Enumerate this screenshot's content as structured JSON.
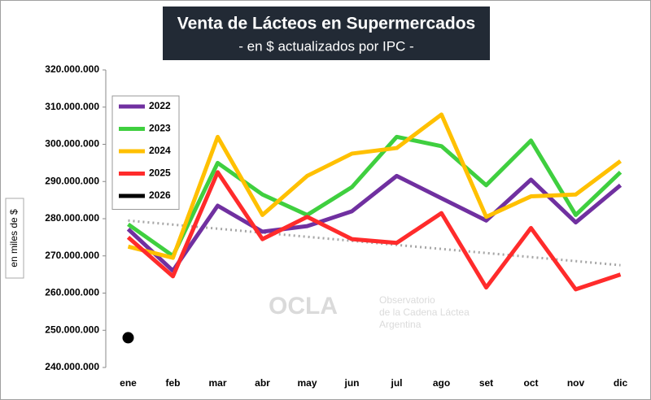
{
  "chart_data": {
    "type": "line",
    "title": "Venta de Lácteos en Supermercados",
    "subtitle": "- en $ actualizados por IPC -",
    "y_label": "en miles de $",
    "watermark": {
      "logo": "OCLA",
      "line1": "Observatorio",
      "line2": "de la Cadena Láctea",
      "line3": "Argentina"
    },
    "categories": [
      "ene",
      "feb",
      "mar",
      "abr",
      "may",
      "jun",
      "jul",
      "ago",
      "set",
      "oct",
      "nov",
      "dic"
    ],
    "series": [
      {
        "name": "2022",
        "color": "#7030a0",
        "values": [
          277200000,
          266000000,
          283500000,
          276500000,
          278000000,
          282000000,
          291500000,
          285500000,
          279500000,
          290500000,
          279000000,
          289000000
        ]
      },
      {
        "name": "2023",
        "color": "#3fcf3f",
        "values": [
          278500000,
          270000000,
          295000000,
          286500000,
          281000000,
          288500000,
          302000000,
          299500000,
          289000000,
          301000000,
          281000000,
          292500000
        ]
      },
      {
        "name": "2024",
        "color": "#ffc000",
        "values": [
          272500000,
          269500000,
          302000000,
          281000000,
          291500000,
          297500000,
          299000000,
          308000000,
          280500000,
          286000000,
          286500000,
          295500000
        ]
      },
      {
        "name": "2025",
        "color": "#ff2b2b",
        "values": [
          275000000,
          264500000,
          292500000,
          274500000,
          280500000,
          274500000,
          273500000,
          281500000,
          261500000,
          277500000,
          261000000,
          265000000
        ]
      },
      {
        "name": "2026",
        "color": "#000000",
        "values": [
          248000000,
          null,
          null,
          null,
          null,
          null,
          null,
          null,
          null,
          null,
          null,
          null
        ]
      }
    ],
    "trend": {
      "color": "#a6a6a6",
      "values": [
        279500000,
        267500000
      ]
    },
    "ylim": [
      240000000,
      320000000
    ],
    "yticks": [
      {
        "value": 240000000,
        "label": "240.000.000"
      },
      {
        "value": 250000000,
        "label": "250.000.000"
      },
      {
        "value": 260000000,
        "label": "260.000.000"
      },
      {
        "value": 270000000,
        "label": "270.000.000"
      },
      {
        "value": 280000000,
        "label": "280.000.000"
      },
      {
        "value": 290000000,
        "label": "290.000.000"
      },
      {
        "value": 300000000,
        "label": "300.000.000"
      },
      {
        "value": 310000000,
        "label": "310.000.000"
      },
      {
        "value": 320000000,
        "label": "320.000.000"
      }
    ],
    "legend": "upper left",
    "grid": false
  }
}
